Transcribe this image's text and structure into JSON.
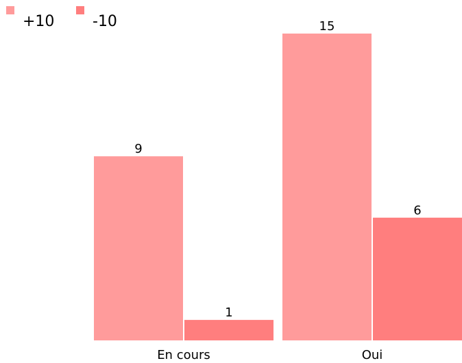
{
  "chart_data": {
    "type": "bar",
    "categories": [
      "En cours",
      "Oui"
    ],
    "series": [
      {
        "name": "+10",
        "values": [
          9,
          15
        ],
        "color": "#ff9b9b"
      },
      {
        "name": "-10",
        "values": [
          1,
          6
        ],
        "color": "#ff7e7e"
      }
    ],
    "ylim": [
      0,
      15
    ],
    "grid": false,
    "legend_position": "top-left",
    "title": "",
    "xlabel": "",
    "ylabel": ""
  }
}
